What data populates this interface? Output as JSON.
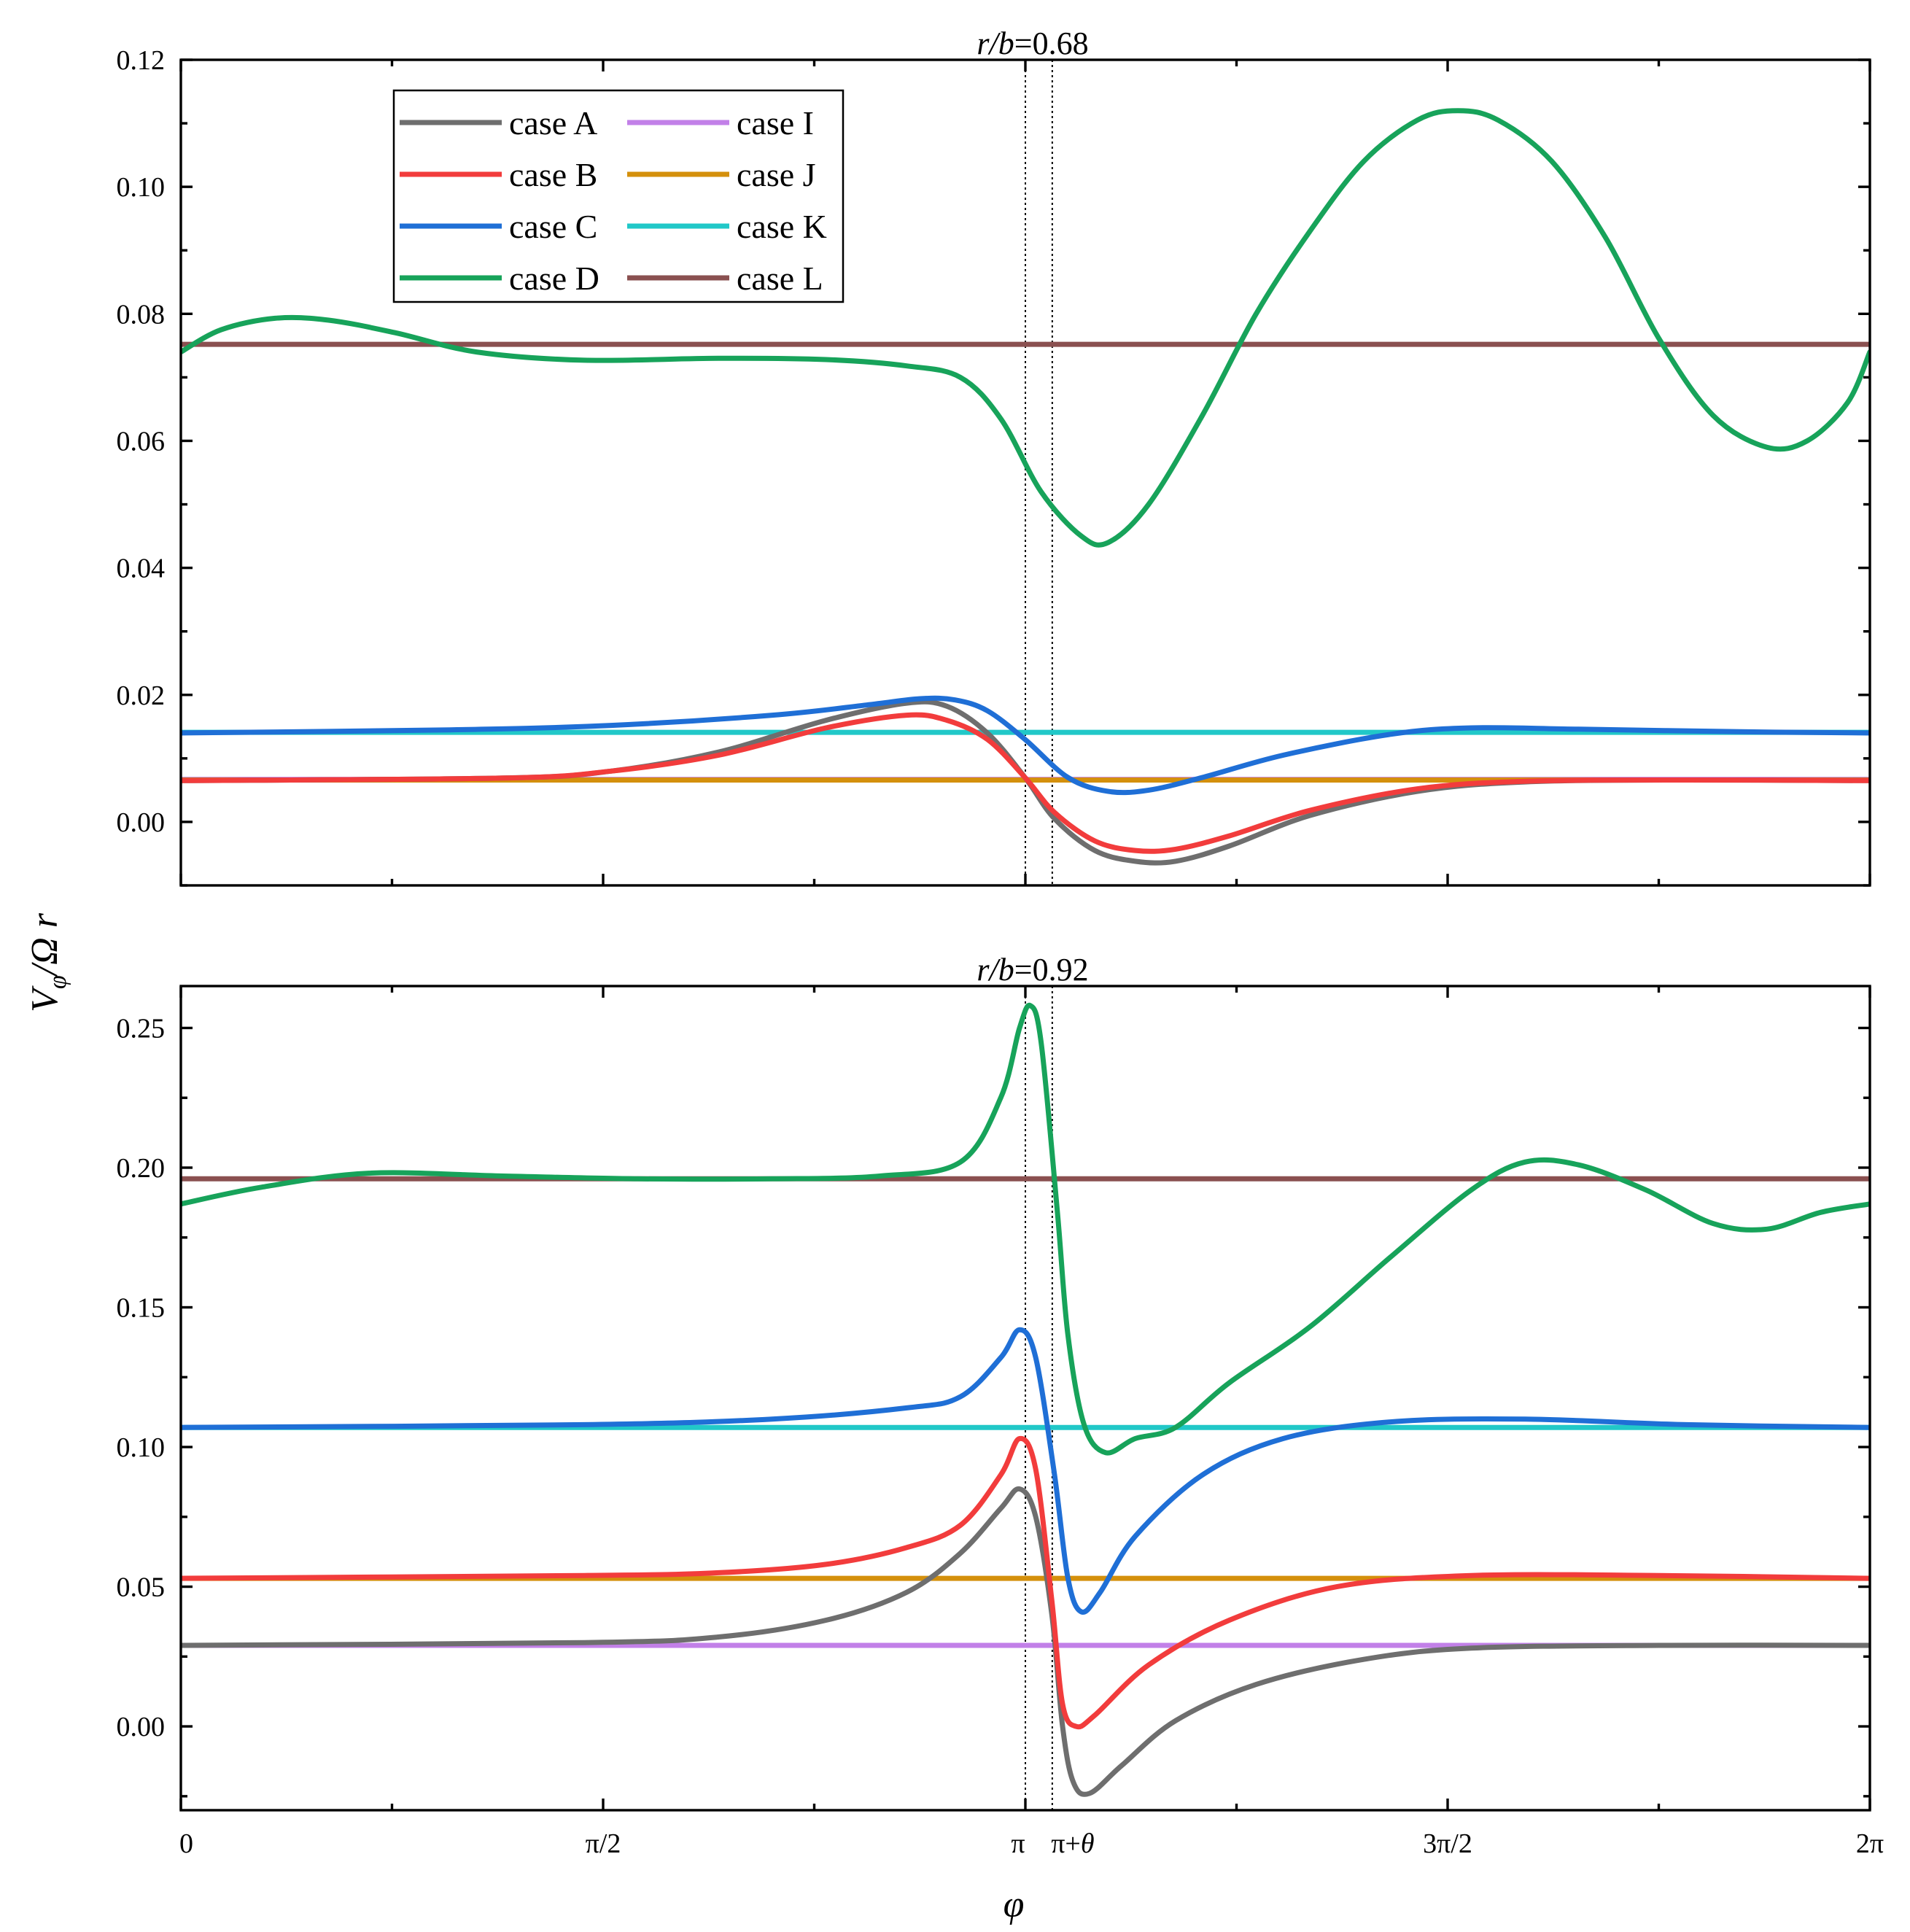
{
  "chart_data": [
    {
      "type": "line",
      "title": "r/b=0.68",
      "title_parts": [
        "r/b",
        "=0.68"
      ],
      "ylim": [
        -0.01,
        0.12
      ],
      "xlim": [
        0,
        6.283185
      ],
      "y_ticks": [
        "0.00",
        "0.02",
        "0.04",
        "0.06",
        "0.08",
        "0.10",
        "0.12"
      ],
      "y_tick_values": [
        0,
        0.02,
        0.04,
        0.06,
        0.08,
        0.1,
        0.12
      ],
      "markers": [
        3.14159,
        3.24159
      ],
      "legend": [
        [
          "case A",
          "case I"
        ],
        [
          "case B",
          "case J"
        ],
        [
          "case C",
          "case K"
        ],
        [
          "case D",
          "case L"
        ]
      ],
      "series": [
        {
          "name": "case A",
          "color": "#6e6e6e",
          "points": [
            [
              0,
              0.0065
            ],
            [
              1.2,
              0.0069
            ],
            [
              1.6,
              0.008
            ],
            [
              2.0,
              0.011
            ],
            [
              2.4,
              0.016
            ],
            [
              2.7,
              0.0187
            ],
            [
              2.85,
              0.0182
            ],
            [
              3.0,
              0.014
            ],
            [
              3.14,
              0.007
            ],
            [
              3.25,
              0.0005
            ],
            [
              3.4,
              -0.0045
            ],
            [
              3.55,
              -0.0062
            ],
            [
              3.7,
              -0.0062
            ],
            [
              3.9,
              -0.0038
            ],
            [
              4.2,
              0.001
            ],
            [
              4.6,
              0.0048
            ],
            [
              5.0,
              0.0063
            ],
            [
              5.6,
              0.0066
            ],
            [
              6.283,
              0.0065
            ]
          ]
        },
        {
          "name": "case B",
          "color": "#f23c3c",
          "points": [
            [
              0,
              0.0065
            ],
            [
              1.2,
              0.0069
            ],
            [
              1.6,
              0.008
            ],
            [
              2.0,
              0.0105
            ],
            [
              2.4,
              0.0148
            ],
            [
              2.7,
              0.0168
            ],
            [
              2.85,
              0.016
            ],
            [
              3.0,
              0.013
            ],
            [
              3.14,
              0.007
            ],
            [
              3.25,
              0.0015
            ],
            [
              3.4,
              -0.003
            ],
            [
              3.55,
              -0.0045
            ],
            [
              3.7,
              -0.0043
            ],
            [
              3.9,
              -0.0022
            ],
            [
              4.2,
              0.0018
            ],
            [
              4.6,
              0.0052
            ],
            [
              5.0,
              0.0064
            ],
            [
              5.6,
              0.0066
            ],
            [
              6.283,
              0.0065
            ]
          ]
        },
        {
          "name": "case C",
          "color": "#1f6fd6",
          "points": [
            [
              0,
              0.014
            ],
            [
              1.0,
              0.0145
            ],
            [
              1.6,
              0.0152
            ],
            [
              2.2,
              0.0168
            ],
            [
              2.55,
              0.0184
            ],
            [
              2.75,
              0.0194
            ],
            [
              2.88,
              0.0192
            ],
            [
              3.0,
              0.0175
            ],
            [
              3.14,
              0.013
            ],
            [
              3.3,
              0.007
            ],
            [
              3.45,
              0.0048
            ],
            [
              3.6,
              0.005
            ],
            [
              3.8,
              0.007
            ],
            [
              4.1,
              0.0105
            ],
            [
              4.5,
              0.0138
            ],
            [
              4.8,
              0.0148
            ],
            [
              5.2,
              0.0146
            ],
            [
              5.8,
              0.0142
            ],
            [
              6.283,
              0.014
            ]
          ]
        },
        {
          "name": "case D",
          "color": "#17a35a",
          "points": [
            [
              0,
              0.074
            ],
            [
              0.15,
              0.0775
            ],
            [
              0.35,
              0.0793
            ],
            [
              0.55,
              0.079
            ],
            [
              0.8,
              0.077
            ],
            [
              1.1,
              0.074
            ],
            [
              1.5,
              0.0727
            ],
            [
              2.0,
              0.073
            ],
            [
              2.4,
              0.0728
            ],
            [
              2.7,
              0.0718
            ],
            [
              2.9,
              0.07
            ],
            [
              3.05,
              0.0635
            ],
            [
              3.2,
              0.052
            ],
            [
              3.35,
              0.045
            ],
            [
              3.45,
              0.044
            ],
            [
              3.6,
              0.05
            ],
            [
              3.8,
              0.064
            ],
            [
              4.0,
              0.08
            ],
            [
              4.2,
              0.093
            ],
            [
              4.4,
              0.104
            ],
            [
              4.6,
              0.1105
            ],
            [
              4.75,
              0.112
            ],
            [
              4.9,
              0.1105
            ],
            [
              5.1,
              0.104
            ],
            [
              5.3,
              0.092
            ],
            [
              5.5,
              0.076
            ],
            [
              5.7,
              0.064
            ],
            [
              5.9,
              0.059
            ],
            [
              6.05,
              0.06
            ],
            [
              6.2,
              0.066
            ],
            [
              6.283,
              0.074
            ]
          ]
        },
        {
          "name": "case I",
          "color": "#c280e8",
          "points": [
            [
              0,
              0.0067
            ],
            [
              6.283,
              0.0067
            ]
          ]
        },
        {
          "name": "case J",
          "color": "#d4900c",
          "points": [
            [
              0,
              0.0066
            ],
            [
              6.283,
              0.0066
            ]
          ]
        },
        {
          "name": "case K",
          "color": "#21c8c8",
          "points": [
            [
              0,
              0.0141
            ],
            [
              6.283,
              0.0141
            ]
          ]
        },
        {
          "name": "case L",
          "color": "#8a5050",
          "points": [
            [
              0,
              0.0752
            ],
            [
              6.283,
              0.0752
            ]
          ]
        }
      ]
    },
    {
      "type": "line",
      "title": "r/b=0.92",
      "title_parts": [
        "r/b",
        "=0.92"
      ],
      "ylim": [
        -0.03,
        0.265
      ],
      "xlim": [
        0,
        6.283185
      ],
      "y_ticks": [
        "0.00",
        "0.05",
        "0.10",
        "0.15",
        "0.20",
        "0.25"
      ],
      "y_tick_values": [
        0,
        0.05,
        0.1,
        0.15,
        0.2,
        0.25
      ],
      "x_tick_labels": [
        "0",
        "π/2",
        "π",
        "π+θ",
        "3π/2",
        "2π"
      ],
      "x_tick_values": [
        0,
        1.5708,
        3.14159,
        3.24159,
        4.7124,
        6.283185
      ],
      "markers": [
        3.14159,
        3.24159
      ],
      "series": [
        {
          "name": "case A",
          "color": "#6e6e6e",
          "points": [
            [
              0,
              0.029
            ],
            [
              1.5,
              0.03
            ],
            [
              2.0,
              0.032
            ],
            [
              2.4,
              0.038
            ],
            [
              2.7,
              0.048
            ],
            [
              2.9,
              0.062
            ],
            [
              3.05,
              0.078
            ],
            [
              3.12,
              0.085
            ],
            [
              3.18,
              0.075
            ],
            [
              3.24,
              0.04
            ],
            [
              3.28,
              0.0
            ],
            [
              3.32,
              -0.02
            ],
            [
              3.38,
              -0.024
            ],
            [
              3.5,
              -0.014
            ],
            [
              3.7,
              0.002
            ],
            [
              4.0,
              0.015
            ],
            [
              4.4,
              0.024
            ],
            [
              4.8,
              0.028
            ],
            [
              5.5,
              0.029
            ],
            [
              6.283,
              0.029
            ]
          ]
        },
        {
          "name": "case B",
          "color": "#f23c3c",
          "points": [
            [
              0,
              0.053
            ],
            [
              1.5,
              0.054
            ],
            [
              2.0,
              0.055
            ],
            [
              2.4,
              0.058
            ],
            [
              2.7,
              0.064
            ],
            [
              2.9,
              0.072
            ],
            [
              3.05,
              0.09
            ],
            [
              3.12,
              0.103
            ],
            [
              3.18,
              0.092
            ],
            [
              3.24,
              0.045
            ],
            [
              3.28,
              0.008
            ],
            [
              3.33,
              0.0
            ],
            [
              3.4,
              0.004
            ],
            [
              3.6,
              0.022
            ],
            [
              3.9,
              0.038
            ],
            [
              4.3,
              0.05
            ],
            [
              4.8,
              0.054
            ],
            [
              5.5,
              0.054
            ],
            [
              6.283,
              0.053
            ]
          ]
        },
        {
          "name": "case C",
          "color": "#1f6fd6",
          "points": [
            [
              0,
              0.107
            ],
            [
              1.5,
              0.108
            ],
            [
              2.2,
              0.11
            ],
            [
              2.7,
              0.114
            ],
            [
              2.9,
              0.118
            ],
            [
              3.05,
              0.132
            ],
            [
              3.12,
              0.142
            ],
            [
              3.18,
              0.132
            ],
            [
              3.25,
              0.09
            ],
            [
              3.3,
              0.053
            ],
            [
              3.35,
              0.041
            ],
            [
              3.42,
              0.048
            ],
            [
              3.55,
              0.068
            ],
            [
              3.8,
              0.09
            ],
            [
              4.1,
              0.103
            ],
            [
              4.5,
              0.109
            ],
            [
              5.0,
              0.11
            ],
            [
              5.6,
              0.108
            ],
            [
              6.283,
              0.107
            ]
          ]
        },
        {
          "name": "case D",
          "color": "#17a35a",
          "points": [
            [
              0,
              0.187
            ],
            [
              0.3,
              0.193
            ],
            [
              0.7,
              0.198
            ],
            [
              1.2,
              0.197
            ],
            [
              1.7,
              0.196
            ],
            [
              2.2,
              0.196
            ],
            [
              2.6,
              0.197
            ],
            [
              2.9,
              0.202
            ],
            [
              3.05,
              0.225
            ],
            [
              3.12,
              0.25
            ],
            [
              3.16,
              0.258
            ],
            [
              3.2,
              0.245
            ],
            [
              3.26,
              0.185
            ],
            [
              3.3,
              0.14
            ],
            [
              3.36,
              0.108
            ],
            [
              3.44,
              0.098
            ],
            [
              3.55,
              0.103
            ],
            [
              3.7,
              0.107
            ],
            [
              3.9,
              0.123
            ],
            [
              4.2,
              0.143
            ],
            [
              4.5,
              0.168
            ],
            [
              4.8,
              0.192
            ],
            [
              5.0,
              0.202
            ],
            [
              5.2,
              0.201
            ],
            [
              5.45,
              0.192
            ],
            [
              5.7,
              0.18
            ],
            [
              5.9,
              0.178
            ],
            [
              6.1,
              0.184
            ],
            [
              6.283,
              0.187
            ]
          ]
        },
        {
          "name": "case I",
          "color": "#c280e8",
          "points": [
            [
              0,
              0.029
            ],
            [
              6.283,
              0.029
            ]
          ]
        },
        {
          "name": "case J",
          "color": "#d4900c",
          "points": [
            [
              0,
              0.053
            ],
            [
              6.283,
              0.053
            ]
          ]
        },
        {
          "name": "case K",
          "color": "#21c8c8",
          "points": [
            [
              0,
              0.107
            ],
            [
              6.283,
              0.107
            ]
          ]
        },
        {
          "name": "case L",
          "color": "#8a5050",
          "points": [
            [
              0,
              0.196
            ],
            [
              6.283,
              0.196
            ]
          ]
        }
      ]
    }
  ],
  "axes": {
    "ylabel_main": "V",
    "ylabel_sub": "φ",
    "ylabel_rest": "/Ω r",
    "xlabel": "φ"
  }
}
